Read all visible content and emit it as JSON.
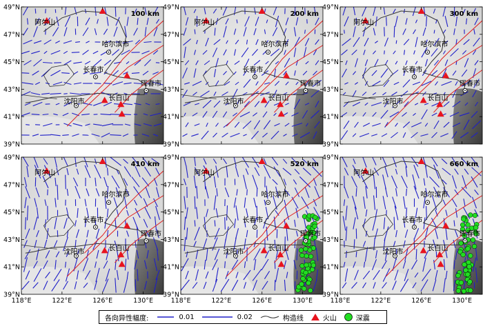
{
  "panels": [
    {
      "depth_label": "100 km",
      "deep_quakes": false
    },
    {
      "depth_label": "200 km",
      "deep_quakes": false
    },
    {
      "depth_label": "300 km",
      "deep_quakes": false
    },
    {
      "depth_label": "410 km",
      "deep_quakes": false
    },
    {
      "depth_label": "520 km",
      "deep_quakes": true
    },
    {
      "depth_label": "660 km",
      "deep_quakes": true
    }
  ],
  "lon_ticks": [
    "118°E",
    "122°E",
    "126°E",
    "130°E"
  ],
  "lat_ticks": [
    "49°N",
    "47°N",
    "45°N",
    "43°N",
    "41°N",
    "39°N"
  ],
  "places": {
    "arxan": "阿尔山",
    "harbin": "哈尔滨市",
    "changchun": "长春市",
    "hunchun": "珲春市",
    "shenyang": "沈阳市",
    "changbai": "长白山"
  },
  "legend": {
    "title": "各向异性幅度:",
    "scale1": "0.01",
    "scale2": "0.02",
    "tectonic": "构造线",
    "volcano": "火山",
    "deep_quake": "深震"
  },
  "colors": {
    "fast_axis": "#1f1fc8",
    "fault": "#e02020",
    "tectonic": "#333333",
    "volcano": "#e8141e",
    "deep_quake": "#22dd22",
    "relief": "#d8d8d8"
  }
}
